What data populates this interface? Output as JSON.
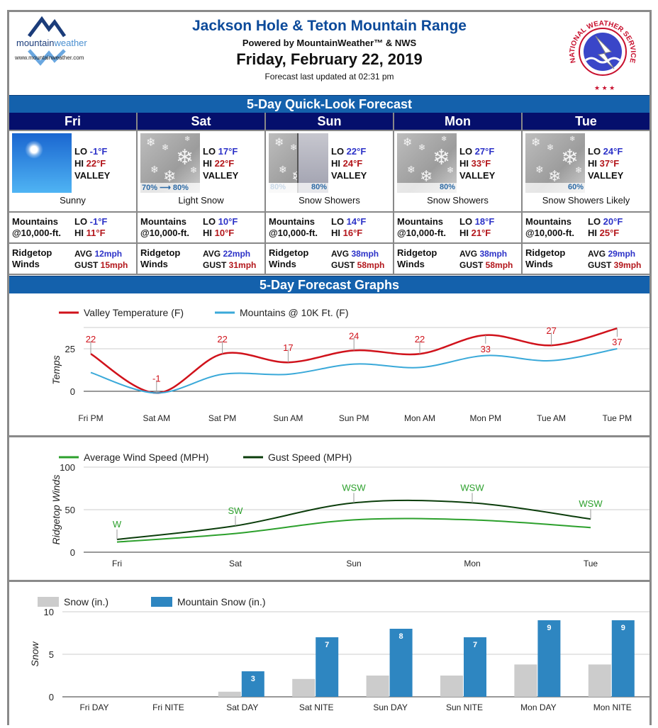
{
  "header": {
    "title": "Jackson Hole & Teton Mountain Range",
    "powered": "Powered by MountainWeather™ & NWS",
    "date": "Friday, February 22, 2019",
    "updated": "Forecast last updated at 02:31 pm",
    "logo_text": "mountainweather",
    "logo_url": "www.mountainweather.com",
    "nws_logo_text": "NATIONAL WEATHER SERVICE"
  },
  "quicklook": {
    "title": "5-Day Quick-Look Forecast",
    "mtn_label1": "Mountains",
    "mtn_label2": "@10,000-ft.",
    "wind_label1": "Ridgetop",
    "wind_label2": "Winds",
    "valley": "VALLEY",
    "days": [
      {
        "day": "Fri",
        "icon": "sunny-icon",
        "pop": "",
        "lo": "-1°F",
        "hi": "22°F",
        "cond": "Sunny",
        "mlo": "-1°F",
        "mhi": "11°F",
        "avg": "12mph",
        "gust": "15mph"
      },
      {
        "day": "Sat",
        "icon": "snow-icon",
        "pop": "70% ⟶ 80%",
        "lo": "17°F",
        "hi": "22°F",
        "cond": "Light Snow",
        "mlo": "10°F",
        "mhi": "10°F",
        "avg": "22mph",
        "gust": "31mph"
      },
      {
        "day": "Sun",
        "icon": "snow-showers-icon",
        "pop": "80%",
        "pop2": "80%",
        "lo": "22°F",
        "hi": "24°F",
        "cond": "Snow Showers",
        "mlo": "14°F",
        "mhi": "16°F",
        "avg": "38mph",
        "gust": "58mph"
      },
      {
        "day": "Mon",
        "icon": "snow-icon",
        "pop": "80%",
        "lo": "27°F",
        "hi": "33°F",
        "cond": "Snow Showers",
        "mlo": "18°F",
        "mhi": "21°F",
        "avg": "38mph",
        "gust": "58mph"
      },
      {
        "day": "Tue",
        "icon": "snow-icon",
        "pop": "60%",
        "lo": "24°F",
        "hi": "37°F",
        "cond": "Snow Showers Likely",
        "mlo": "20°F",
        "mhi": "25°F",
        "avg": "29mph",
        "gust": "39mph"
      }
    ]
  },
  "graphs_title": "5-Day Forecast Graphs",
  "colors": {
    "valley": "#d0121b",
    "mountain": "#3aa9d9",
    "avg_wind": "#2ca02c",
    "gust": "#0b3d0b",
    "snow": "#cccccc",
    "mtn_snow": "#2e86c1",
    "bar": "#1461ac",
    "dayhead": "#050f6c"
  },
  "chart_data": [
    {
      "type": "line",
      "ylabel": "Temps",
      "yticks": [
        0,
        25
      ],
      "ylim": [
        -3,
        40
      ],
      "categories": [
        "Fri PM",
        "Sat AM",
        "Sat PM",
        "Sun AM",
        "Sun PM",
        "Mon AM",
        "Mon PM",
        "Tue AM",
        "Tue PM"
      ],
      "series": [
        {
          "name": "Valley Temperature (F)",
          "values": [
            22,
            -1,
            22,
            17,
            24,
            22,
            33,
            27,
            37
          ],
          "labels": [
            "22",
            "-1",
            "22",
            "17",
            "24",
            "22",
            "33",
            "27",
            "37"
          ]
        },
        {
          "name": "Mountains @ 10K Ft. (F)",
          "values": [
            11,
            -1,
            10,
            10,
            16,
            14,
            21,
            18,
            25
          ]
        }
      ],
      "legend": "top-left"
    },
    {
      "type": "line",
      "ylabel": "Ridgetop Winds",
      "yticks": [
        0,
        50,
        100
      ],
      "ylim": [
        0,
        100
      ],
      "categories": [
        "Fri",
        "Sat",
        "Sun",
        "Mon",
        "Tue"
      ],
      "series": [
        {
          "name": "Average Wind Speed (MPH)",
          "values": [
            12,
            22,
            38,
            38,
            29
          ]
        },
        {
          "name": "Gust Speed (MPH)",
          "values": [
            15,
            31,
            58,
            58,
            39
          ]
        }
      ],
      "direction_labels": [
        "W",
        "SW",
        "WSW",
        "WSW",
        "WSW"
      ],
      "legend": "top-left"
    },
    {
      "type": "bar",
      "ylabel": "Snow",
      "yticks": [
        0,
        5,
        10
      ],
      "ylim": [
        0,
        10
      ],
      "categories": [
        "Fri DAY",
        "Fri NITE",
        "Sat DAY",
        "Sat NITE",
        "Sun DAY",
        "Sun NITE",
        "Mon DAY",
        "Mon NITE"
      ],
      "series": [
        {
          "name": "Snow (in.)",
          "values": [
            0,
            0,
            0.6,
            2.1,
            2.5,
            2.5,
            3.8,
            3.8
          ]
        },
        {
          "name": "Mountain Snow (in.)",
          "values": [
            0,
            0,
            3,
            7,
            8,
            7,
            9,
            9
          ],
          "labels": [
            "",
            "",
            "3",
            "7",
            "8",
            "7",
            "9",
            "9"
          ]
        }
      ],
      "legend": "top-left"
    }
  ]
}
